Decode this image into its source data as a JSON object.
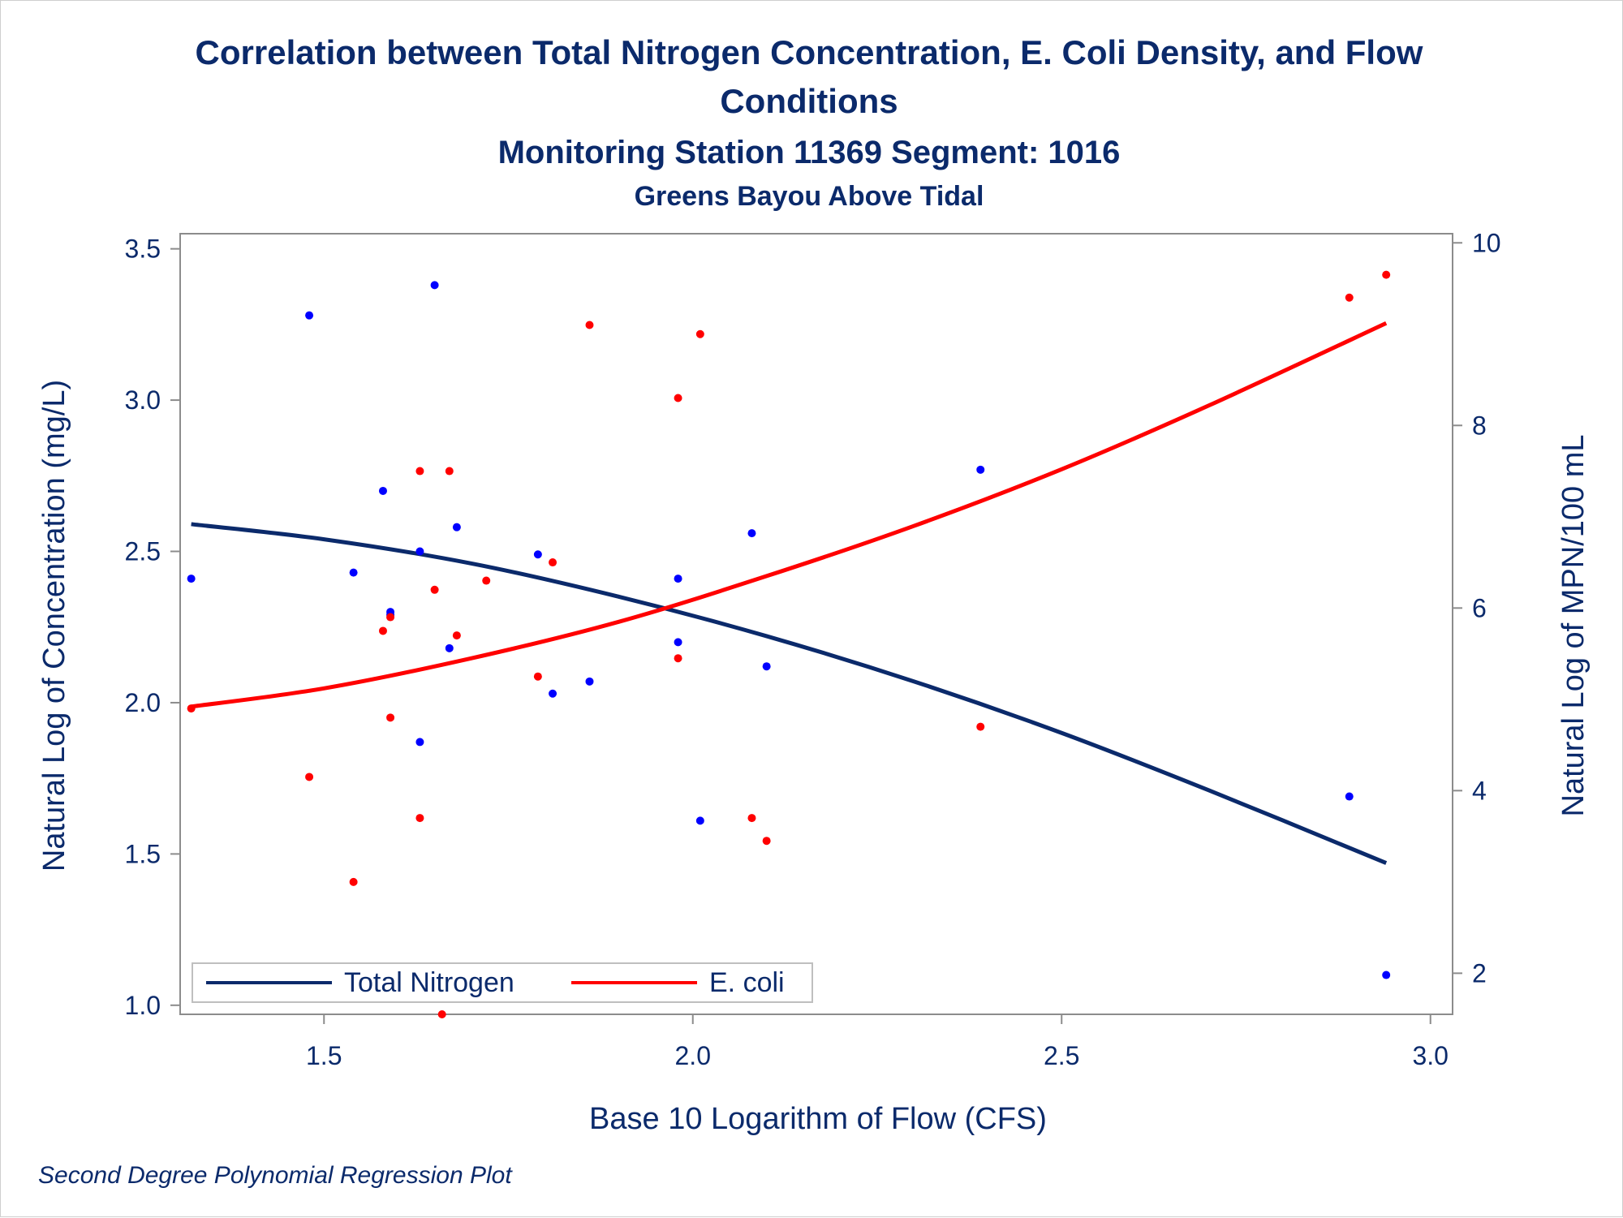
{
  "title_line1": "Correlation between Total Nitrogen Concentration, E. Coli Density, and Flow",
  "title_line2": "Conditions",
  "subtitle": "Monitoring Station 11369 Segment: 1016",
  "subtitle2": "Greens Bayou Above Tidal",
  "footnote": "Second Degree Polynomial Regression Plot",
  "colors": {
    "nitrogen": "#0b2a6b",
    "nitrogen_points": "#0000ff",
    "ecoli": "#ff0000",
    "text": "#0b2a6b",
    "axis": "#8c8c8c"
  },
  "chart_data": {
    "type": "scatter",
    "xlabel": "Base 10 Logarithm of Flow (CFS)",
    "ylabel": "Natural Log of Concentration (mg/L)",
    "y2label": "Natural Log of MPN/100 mL",
    "xlim": [
      1.305,
      3.03
    ],
    "ylim": [
      0.97,
      3.55
    ],
    "y2lim": [
      1.55,
      10.1
    ],
    "xticks": [
      "1.5",
      "2.0",
      "2.5",
      "3.0"
    ],
    "yticks": [
      "1.0",
      "1.5",
      "2.0",
      "2.5",
      "3.0",
      "3.5"
    ],
    "y2ticks": [
      "2",
      "4",
      "6",
      "8",
      "10"
    ],
    "legend_position": "bottom-left",
    "series": [
      {
        "name": "Total Nitrogen",
        "axis": "left",
        "points": [
          [
            1.32,
            2.41
          ],
          [
            1.48,
            3.28
          ],
          [
            1.54,
            2.43
          ],
          [
            1.58,
            2.7
          ],
          [
            1.59,
            2.29
          ],
          [
            1.59,
            2.3
          ],
          [
            1.63,
            2.5
          ],
          [
            1.63,
            1.87
          ],
          [
            1.65,
            3.38
          ],
          [
            1.67,
            2.18
          ],
          [
            1.68,
            2.58
          ],
          [
            1.79,
            2.49
          ],
          [
            1.81,
            2.03
          ],
          [
            1.86,
            2.07
          ],
          [
            1.98,
            2.41
          ],
          [
            1.98,
            2.2
          ],
          [
            2.01,
            1.61
          ],
          [
            2.08,
            2.56
          ],
          [
            2.1,
            2.12
          ],
          [
            2.39,
            2.77
          ],
          [
            2.89,
            1.69
          ],
          [
            2.94,
            1.1
          ]
        ],
        "fit": {
          "x": [
            1.32,
            1.5,
            1.7,
            1.9,
            2.1,
            2.3,
            2.5,
            2.7,
            2.94
          ],
          "y": [
            2.59,
            2.54,
            2.46,
            2.35,
            2.22,
            2.07,
            1.9,
            1.71,
            1.47
          ]
        }
      },
      {
        "name": "E. coli",
        "axis": "right",
        "points": [
          [
            1.32,
            4.9
          ],
          [
            1.48,
            4.15
          ],
          [
            1.54,
            3.0
          ],
          [
            1.58,
            5.75
          ],
          [
            1.59,
            5.9
          ],
          [
            1.59,
            4.8
          ],
          [
            1.63,
            7.5
          ],
          [
            1.63,
            3.7
          ],
          [
            1.65,
            6.2
          ],
          [
            1.66,
            1.55
          ],
          [
            1.67,
            7.5
          ],
          [
            1.68,
            5.7
          ],
          [
            1.72,
            6.3
          ],
          [
            1.79,
            5.25
          ],
          [
            1.81,
            6.5
          ],
          [
            1.86,
            9.1
          ],
          [
            1.98,
            8.3
          ],
          [
            1.98,
            5.45
          ],
          [
            2.01,
            9.0
          ],
          [
            2.08,
            3.7
          ],
          [
            2.1,
            3.45
          ],
          [
            2.39,
            4.7
          ],
          [
            2.89,
            9.4
          ],
          [
            2.94,
            9.65
          ]
        ],
        "fit": {
          "x": [
            1.32,
            1.5,
            1.7,
            1.9,
            2.1,
            2.3,
            2.5,
            2.7,
            2.94
          ],
          "y": [
            4.92,
            5.12,
            5.45,
            5.85,
            6.35,
            6.9,
            7.52,
            8.22,
            9.12
          ]
        }
      }
    ]
  }
}
